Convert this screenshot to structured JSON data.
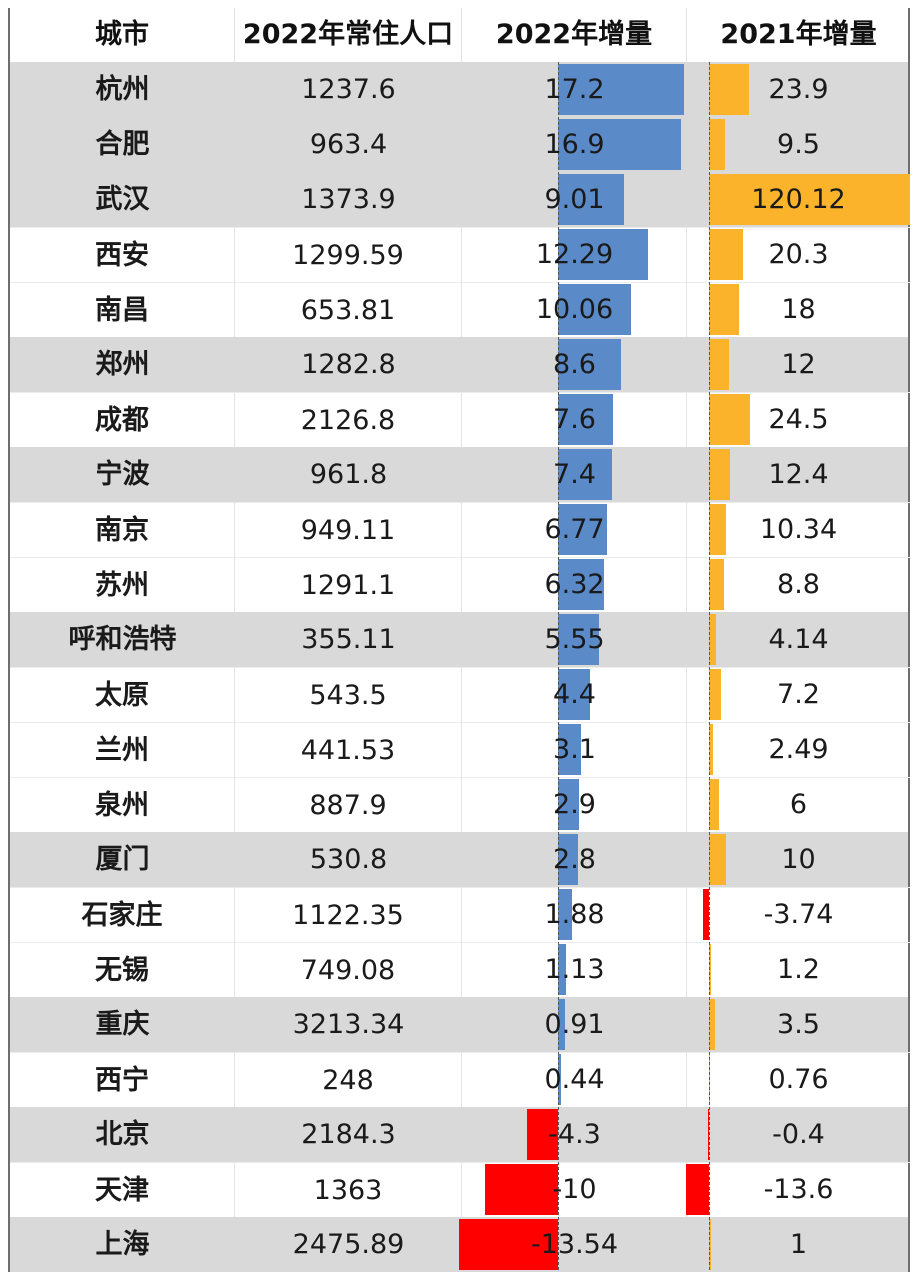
{
  "header": {
    "city": "城市",
    "population": "2022年常住人口",
    "increase_2022": "2022年增量",
    "increase_2021": "2021年增量"
  },
  "colors": {
    "positive_2022": "#5b8ac9",
    "positive_2021": "#fbb32b",
    "negative": "#ff0000",
    "row_gray": "#d9d9d9",
    "row_white": "#ffffff"
  },
  "rows": [
    {
      "city": "杭州",
      "population": "1237.6",
      "inc2022": "17.2",
      "inc2021": "23.9",
      "shade": "gray"
    },
    {
      "city": "合肥",
      "population": "963.4",
      "inc2022": "16.9",
      "inc2021": "9.5",
      "shade": "gray"
    },
    {
      "city": "武汉",
      "population": "1373.9",
      "inc2022": "9.01",
      "inc2021": "120.12",
      "shade": "gray"
    },
    {
      "city": "西安",
      "population": "1299.59",
      "inc2022": "12.29",
      "inc2021": "20.3",
      "shade": "white"
    },
    {
      "city": "南昌",
      "population": "653.81",
      "inc2022": "10.06",
      "inc2021": "18",
      "shade": "white"
    },
    {
      "city": "郑州",
      "population": "1282.8",
      "inc2022": "8.6",
      "inc2021": "12",
      "shade": "gray"
    },
    {
      "city": "成都",
      "population": "2126.8",
      "inc2022": "7.6",
      "inc2021": "24.5",
      "shade": "white"
    },
    {
      "city": "宁波",
      "population": "961.8",
      "inc2022": "7.4",
      "inc2021": "12.4",
      "shade": "gray"
    },
    {
      "city": "南京",
      "population": "949.11",
      "inc2022": "6.77",
      "inc2021": "10.34",
      "shade": "white"
    },
    {
      "city": "苏州",
      "population": "1291.1",
      "inc2022": "6.32",
      "inc2021": "8.8",
      "shade": "white"
    },
    {
      "city": "呼和浩特",
      "population": "355.11",
      "inc2022": "5.55",
      "inc2021": "4.14",
      "shade": "gray"
    },
    {
      "city": "太原",
      "population": "543.5",
      "inc2022": "4.4",
      "inc2021": "7.2",
      "shade": "white"
    },
    {
      "city": "兰州",
      "population": "441.53",
      "inc2022": "3.1",
      "inc2021": "2.49",
      "shade": "white"
    },
    {
      "city": "泉州",
      "population": "887.9",
      "inc2022": "2.9",
      "inc2021": "6",
      "shade": "white"
    },
    {
      "city": "厦门",
      "population": "530.8",
      "inc2022": "2.8",
      "inc2021": "10",
      "shade": "gray"
    },
    {
      "city": "石家庄",
      "population": "1122.35",
      "inc2022": "1.88",
      "inc2021": "-3.74",
      "shade": "white"
    },
    {
      "city": "无锡",
      "population": "749.08",
      "inc2022": "1.13",
      "inc2021": "1.2",
      "shade": "white"
    },
    {
      "city": "重庆",
      "population": "3213.34",
      "inc2022": "0.91",
      "inc2021": "3.5",
      "shade": "gray"
    },
    {
      "city": "西宁",
      "population": "248",
      "inc2022": "0.44",
      "inc2021": "0.76",
      "shade": "white"
    },
    {
      "city": "北京",
      "population": "2184.3",
      "inc2022": "-4.3",
      "inc2021": "-0.4",
      "shade": "gray"
    },
    {
      "city": "天津",
      "population": "1363",
      "inc2022": "-10",
      "inc2021": "-13.6",
      "shade": "white"
    },
    {
      "city": "上海",
      "population": "2475.89",
      "inc2022": "-13.54",
      "inc2021": "1",
      "shade": "gray"
    }
  ],
  "chart_data": {
    "type": "table",
    "title": "",
    "columns": [
      "城市",
      "2022年常住人口",
      "2022年增量",
      "2021年增量"
    ],
    "categories": [
      "杭州",
      "合肥",
      "武汉",
      "西安",
      "南昌",
      "郑州",
      "成都",
      "宁波",
      "南京",
      "苏州",
      "呼和浩特",
      "太原",
      "兰州",
      "泉州",
      "厦门",
      "石家庄",
      "无锡",
      "重庆",
      "西宁",
      "北京",
      "天津",
      "上海"
    ],
    "series": [
      {
        "name": "2022年常住人口",
        "values": [
          1237.6,
          963.4,
          1373.9,
          1299.59,
          653.81,
          1282.8,
          2126.8,
          961.8,
          949.11,
          1291.1,
          355.11,
          543.5,
          441.53,
          887.9,
          530.8,
          1122.35,
          749.08,
          3213.34,
          248,
          2184.3,
          1363,
          2475.89
        ]
      },
      {
        "name": "2022年增量",
        "values": [
          17.2,
          16.9,
          9.01,
          12.29,
          10.06,
          8.6,
          7.6,
          7.4,
          6.77,
          6.32,
          5.55,
          4.4,
          3.1,
          2.9,
          2.8,
          1.88,
          1.13,
          0.91,
          0.44,
          -4.3,
          -10,
          -13.54
        ],
        "display": "data-bar",
        "positive_color": "#5b8ac9",
        "negative_color": "#ff0000"
      },
      {
        "name": "2021年增量",
        "values": [
          23.9,
          9.5,
          120.12,
          20.3,
          18,
          12,
          24.5,
          12.4,
          10.34,
          8.8,
          4.14,
          7.2,
          2.49,
          6,
          10,
          -3.74,
          1.2,
          3.5,
          0.76,
          -0.4,
          -13.6,
          1
        ],
        "display": "data-bar",
        "positive_color": "#fbb32b",
        "negative_color": "#ff0000"
      }
    ]
  }
}
